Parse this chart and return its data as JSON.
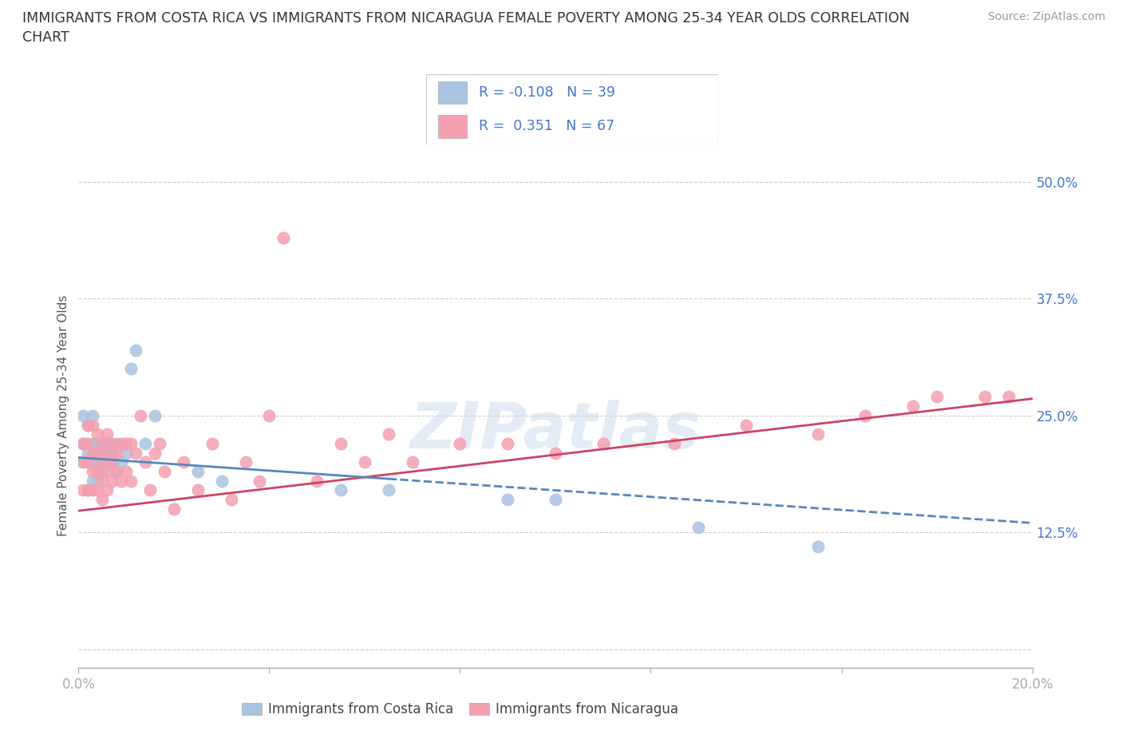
{
  "title": "IMMIGRANTS FROM COSTA RICA VS IMMIGRANTS FROM NICARAGUA FEMALE POVERTY AMONG 25-34 YEAR OLDS CORRELATION\nCHART",
  "source": "Source: ZipAtlas.com",
  "ylabel": "Female Poverty Among 25-34 Year Olds",
  "xlim": [
    0.0,
    0.2
  ],
  "ylim": [
    -0.02,
    0.52
  ],
  "yticks": [
    0.0,
    0.125,
    0.25,
    0.375,
    0.5
  ],
  "ytick_labels": [
    "",
    "12.5%",
    "25.0%",
    "37.5%",
    "50.0%"
  ],
  "xticks": [
    0.0,
    0.04,
    0.08,
    0.12,
    0.16,
    0.2
  ],
  "xtick_labels": [
    "0.0%",
    "",
    "",
    "",
    "",
    "20.0%"
  ],
  "costa_rica_R": -0.108,
  "costa_rica_N": 39,
  "nicaragua_R": 0.351,
  "nicaragua_N": 67,
  "costa_rica_color": "#a8c4e0",
  "nicaragua_color": "#f4a0b0",
  "trend_costa_rica_color": "#5588bb",
  "trend_nicaragua_color": "#cc4466",
  "background_color": "#ffffff",
  "grid_color": "#cccccc",
  "axis_label_color": "#4477cc",
  "text_color": "#555555",
  "costa_rica_x": [
    0.001,
    0.001,
    0.001,
    0.002,
    0.002,
    0.002,
    0.002,
    0.003,
    0.003,
    0.003,
    0.003,
    0.004,
    0.004,
    0.004,
    0.004,
    0.005,
    0.005,
    0.005,
    0.006,
    0.006,
    0.006,
    0.007,
    0.007,
    0.008,
    0.008,
    0.009,
    0.01,
    0.011,
    0.012,
    0.014,
    0.016,
    0.025,
    0.03,
    0.055,
    0.065,
    0.09,
    0.1,
    0.13,
    0.155
  ],
  "costa_rica_y": [
    0.2,
    0.22,
    0.25,
    0.17,
    0.2,
    0.21,
    0.24,
    0.18,
    0.2,
    0.22,
    0.25,
    0.18,
    0.2,
    0.21,
    0.22,
    0.19,
    0.2,
    0.22,
    0.2,
    0.21,
    0.22,
    0.2,
    0.21,
    0.19,
    0.22,
    0.2,
    0.21,
    0.3,
    0.32,
    0.22,
    0.25,
    0.19,
    0.18,
    0.17,
    0.17,
    0.16,
    0.16,
    0.13,
    0.11
  ],
  "nicaragua_x": [
    0.001,
    0.001,
    0.001,
    0.002,
    0.002,
    0.002,
    0.002,
    0.003,
    0.003,
    0.003,
    0.003,
    0.004,
    0.004,
    0.004,
    0.004,
    0.005,
    0.005,
    0.005,
    0.005,
    0.006,
    0.006,
    0.006,
    0.006,
    0.007,
    0.007,
    0.007,
    0.008,
    0.008,
    0.009,
    0.009,
    0.01,
    0.01,
    0.011,
    0.011,
    0.012,
    0.013,
    0.014,
    0.015,
    0.016,
    0.017,
    0.018,
    0.02,
    0.022,
    0.025,
    0.028,
    0.032,
    0.035,
    0.038,
    0.04,
    0.043,
    0.05,
    0.055,
    0.06,
    0.065,
    0.07,
    0.08,
    0.09,
    0.1,
    0.11,
    0.125,
    0.14,
    0.155,
    0.165,
    0.175,
    0.18,
    0.19,
    0.195
  ],
  "nicaragua_y": [
    0.17,
    0.2,
    0.22,
    0.17,
    0.2,
    0.22,
    0.24,
    0.17,
    0.19,
    0.21,
    0.24,
    0.17,
    0.19,
    0.21,
    0.23,
    0.16,
    0.18,
    0.2,
    0.22,
    0.17,
    0.19,
    0.21,
    0.23,
    0.18,
    0.2,
    0.22,
    0.19,
    0.21,
    0.18,
    0.22,
    0.19,
    0.22,
    0.18,
    0.22,
    0.21,
    0.25,
    0.2,
    0.17,
    0.21,
    0.22,
    0.19,
    0.15,
    0.2,
    0.17,
    0.22,
    0.16,
    0.2,
    0.18,
    0.25,
    0.44,
    0.18,
    0.22,
    0.2,
    0.23,
    0.2,
    0.22,
    0.22,
    0.21,
    0.22,
    0.22,
    0.24,
    0.23,
    0.25,
    0.26,
    0.27,
    0.27,
    0.27
  ],
  "trend_cr_slope": -0.35,
  "trend_cr_intercept": 0.205,
  "trend_ni_slope": 0.6,
  "trend_ni_intercept": 0.148
}
